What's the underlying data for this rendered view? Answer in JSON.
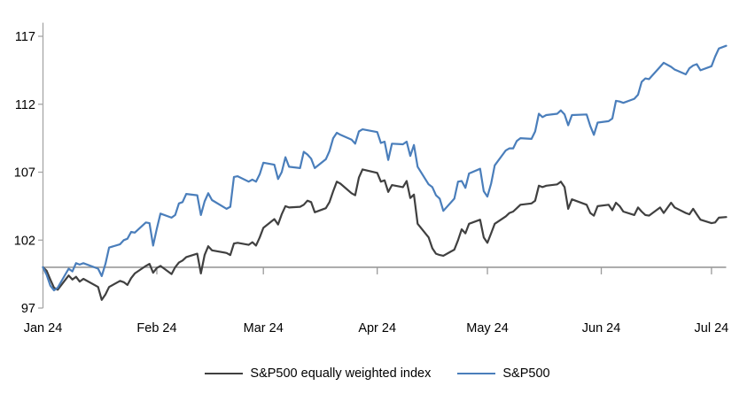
{
  "chart_data": {
    "type": "line",
    "title": "",
    "x_axis": {
      "tick_labels": [
        "Jan 24",
        "Feb 24",
        "Mar 24",
        "Apr 24",
        "May 24",
        "Jun 24",
        "Jul 24"
      ],
      "tick_days": [
        0,
        31,
        60,
        91,
        121,
        152,
        182
      ],
      "range_days": [
        0,
        186
      ]
    },
    "y_axis": {
      "ticks": [
        97,
        102,
        107,
        112,
        117
      ],
      "range": [
        97,
        118
      ]
    },
    "baseline_value": 100,
    "grid": "off",
    "legend_position": "bottom-center",
    "axis_color": "#a6a6a6",
    "baseline_color": "#9a9a9a",
    "days": [
      0,
      1,
      2,
      3,
      4,
      7,
      8,
      9,
      10,
      11,
      15,
      16,
      17,
      18,
      21,
      22,
      23,
      24,
      25,
      28,
      29,
      30,
      31,
      32,
      35,
      36,
      37,
      38,
      39,
      42,
      43,
      44,
      45,
      46,
      50,
      51,
      52,
      53,
      56,
      57,
      58,
      59,
      60,
      63,
      64,
      65,
      66,
      67,
      70,
      71,
      72,
      73,
      74,
      77,
      78,
      79,
      80,
      81,
      84,
      85,
      86,
      87,
      91,
      92,
      93,
      94,
      95,
      98,
      99,
      100,
      101,
      102,
      105,
      106,
      107,
      108,
      109,
      112,
      113,
      114,
      115,
      116,
      119,
      120,
      121,
      122,
      123,
      126,
      127,
      128,
      129,
      130,
      133,
      134,
      135,
      136,
      137,
      140,
      141,
      142,
      143,
      144,
      148,
      149,
      150,
      151,
      154,
      155,
      156,
      157,
      158,
      161,
      162,
      163,
      164,
      165,
      168,
      169,
      171,
      172,
      175,
      176,
      177,
      178,
      179,
      182,
      183,
      184,
      186
    ],
    "series": [
      {
        "name": "S&P500 equally weighted index",
        "color": "#404040",
        "values": [
          100.0,
          99.75,
          99.1,
          98.5,
          98.35,
          99.4,
          99.1,
          99.3,
          98.95,
          99.15,
          98.55,
          97.6,
          98.0,
          98.55,
          99.0,
          98.9,
          98.7,
          99.2,
          99.55,
          100.1,
          100.25,
          99.6,
          99.95,
          100.1,
          99.5,
          100.0,
          100.35,
          100.5,
          100.75,
          101.0,
          99.55,
          100.9,
          101.55,
          101.25,
          101.05,
          100.9,
          101.75,
          101.8,
          101.65,
          101.85,
          101.6,
          102.2,
          102.9,
          103.55,
          103.15,
          103.9,
          104.5,
          104.4,
          104.45,
          104.6,
          104.9,
          104.8,
          104.05,
          104.35,
          104.8,
          105.6,
          106.3,
          106.15,
          105.45,
          105.3,
          106.6,
          107.2,
          106.95,
          106.3,
          106.4,
          105.55,
          106.05,
          105.9,
          106.35,
          105.1,
          105.35,
          103.2,
          102.2,
          101.4,
          101.0,
          100.9,
          100.85,
          101.3,
          102.0,
          102.8,
          102.5,
          103.2,
          103.5,
          102.2,
          101.8,
          102.5,
          103.2,
          103.75,
          104.0,
          104.1,
          104.35,
          104.6,
          104.7,
          104.9,
          106.0,
          105.9,
          106.0,
          106.1,
          106.3,
          105.9,
          104.3,
          105.0,
          104.6,
          104.0,
          103.8,
          104.5,
          104.6,
          104.2,
          104.75,
          104.5,
          104.1,
          103.85,
          104.4,
          104.1,
          103.85,
          103.8,
          104.4,
          104.0,
          104.75,
          104.4,
          104.0,
          103.9,
          104.3,
          103.9,
          103.5,
          103.25,
          103.3,
          103.65,
          103.7
        ]
      },
      {
        "name": "S&P500",
        "color": "#4A7EBB",
        "values": [
          100.0,
          99.45,
          98.65,
          98.3,
          98.5,
          99.9,
          99.7,
          100.3,
          100.2,
          100.3,
          99.9,
          99.35,
          100.25,
          101.45,
          101.7,
          102.0,
          102.1,
          102.6,
          102.55,
          103.3,
          103.25,
          101.6,
          102.85,
          103.95,
          103.65,
          103.85,
          104.7,
          104.8,
          105.4,
          105.3,
          103.85,
          104.85,
          105.45,
          104.95,
          104.3,
          104.45,
          106.65,
          106.7,
          106.3,
          106.45,
          106.3,
          106.85,
          107.7,
          107.55,
          106.5,
          107.0,
          108.1,
          107.4,
          107.3,
          108.5,
          108.3,
          108.0,
          107.3,
          107.95,
          108.55,
          109.5,
          109.9,
          109.75,
          109.4,
          109.1,
          110.0,
          110.15,
          109.95,
          109.15,
          109.25,
          107.9,
          109.1,
          109.05,
          109.25,
          108.2,
          109.0,
          107.4,
          106.1,
          105.9,
          105.3,
          105.05,
          104.15,
          105.05,
          106.3,
          106.35,
          105.85,
          106.9,
          107.25,
          105.6,
          105.2,
          106.15,
          107.5,
          108.6,
          108.75,
          108.75,
          109.3,
          109.5,
          109.45,
          110.0,
          111.3,
          111.05,
          111.2,
          111.3,
          111.55,
          111.25,
          110.45,
          111.2,
          111.25,
          110.4,
          109.75,
          110.65,
          110.75,
          110.95,
          112.25,
          112.2,
          112.1,
          112.4,
          112.7,
          113.65,
          113.9,
          113.85,
          114.75,
          115.05,
          114.75,
          114.55,
          114.2,
          114.65,
          114.85,
          114.95,
          114.5,
          114.8,
          115.5,
          116.1,
          116.3
        ]
      }
    ]
  }
}
